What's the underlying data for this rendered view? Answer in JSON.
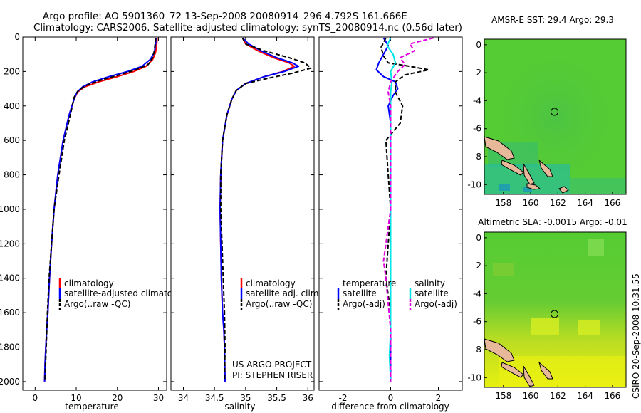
{
  "figure": {
    "title_line1": "Argo profile: AO 5901360_72 13-Sep-2008 20080914_296 4.792S 161.666E",
    "title_line2": "Climatology: CARS2006. Satellite-adjusted climatology: synTS_20080914.nc (0.56d later)",
    "side_text": "CSIRO 20-Sep-2008 10:31:55",
    "project_line1": "US ARGO PROJECT",
    "project_line2": "PI: STEPHEN RISER"
  },
  "colors": {
    "climatology": "#ff0000",
    "satellite": "#0000ff",
    "argo": "#000000",
    "sal_satellite": "#00e5e5",
    "sal_argo": "#e000e0",
    "land": "#e8b89a"
  },
  "chart_data": [
    {
      "type": "line",
      "id": "temperature",
      "xlabel": "temperature",
      "ylabel": "",
      "xlim": [
        -3,
        32
      ],
      "ylim": [
        2050,
        0
      ],
      "xticks": [
        0,
        10,
        20,
        30
      ],
      "yticks": [
        0,
        200,
        400,
        600,
        800,
        1000,
        1200,
        1400,
        1600,
        1800,
        2000
      ],
      "legend": [
        "climatology",
        "satellite-adjusted climatology",
        "Argo(..raw -QC)"
      ],
      "legend_placement": "lower-center",
      "series": [
        {
          "name": "climatology",
          "x": [
            29.7,
            29.6,
            29.3,
            28.6,
            27.0,
            24.0,
            20.0,
            15.5,
            12.0,
            10.3,
            9.5,
            8.3,
            6.8,
            5.5,
            4.6,
            4.0,
            3.5,
            3.1,
            2.8,
            2.6,
            2.4,
            2.3
          ],
          "y": [
            5,
            40,
            90,
            130,
            170,
            200,
            230,
            260,
            290,
            320,
            360,
            450,
            600,
            800,
            1000,
            1200,
            1400,
            1600,
            1700,
            1800,
            1900,
            2000
          ]
        },
        {
          "name": "satellite-adjusted climatology",
          "x": [
            29.4,
            29.3,
            29.0,
            28.0,
            26.0,
            22.5,
            18.0,
            14.0,
            11.5,
            10.2,
            9.5,
            8.3,
            6.8,
            5.5,
            4.6,
            4.0,
            3.5,
            3.1,
            2.8,
            2.6,
            2.4,
            2.3
          ],
          "y": [
            5,
            40,
            90,
            130,
            170,
            200,
            230,
            260,
            290,
            320,
            360,
            450,
            600,
            800,
            1000,
            1200,
            1400,
            1600,
            1700,
            1800,
            1900,
            2000
          ]
        },
        {
          "name": "Argo(..raw -QC)",
          "x": [
            29.3,
            29.2,
            29.0,
            28.6,
            27.5,
            24.5,
            20.5,
            16.0,
            12.5,
            10.5,
            9.5,
            8.6,
            7.1,
            5.8,
            4.6,
            4.0,
            3.4,
            3.0,
            2.7,
            2.4
          ],
          "y": [
            5,
            40,
            80,
            120,
            160,
            190,
            220,
            250,
            280,
            310,
            350,
            450,
            600,
            800,
            1000,
            1200,
            1400,
            1600,
            1800,
            1990
          ]
        }
      ]
    },
    {
      "type": "line",
      "id": "salinity",
      "xlabel": "salinity",
      "ylabel": "",
      "xlim": [
        33.8,
        36.1
      ],
      "ylim": [
        2050,
        0
      ],
      "xticks": [
        34,
        34.5,
        35,
        35.5,
        36
      ],
      "xtick_labels": [
        "34",
        "34.5",
        "35",
        "35.5",
        "36"
      ],
      "yticks": [
        0,
        200,
        400,
        600,
        800,
        1000,
        1200,
        1400,
        1600,
        1800,
        2000
      ],
      "legend": [
        "climatology",
        "satellite adj. clim.",
        "Argo(..raw -QC)"
      ],
      "legend_placement": "lower-center",
      "series": [
        {
          "name": "climatology",
          "x": [
            34.95,
            35.0,
            35.2,
            35.45,
            35.7,
            35.78,
            35.6,
            35.3,
            35.0,
            34.85,
            34.78,
            34.7,
            34.63,
            34.6,
            34.59,
            34.6,
            34.61,
            34.63,
            34.65,
            34.66,
            34.67
          ],
          "y": [
            5,
            40,
            80,
            120,
            150,
            170,
            200,
            230,
            270,
            310,
            360,
            450,
            600,
            800,
            1000,
            1200,
            1400,
            1600,
            1700,
            1800,
            2000
          ]
        },
        {
          "name": "satellite adj. clim.",
          "x": [
            34.95,
            35.05,
            35.25,
            35.5,
            35.75,
            35.85,
            35.62,
            35.3,
            35.0,
            34.85,
            34.78,
            34.7,
            34.63,
            34.6,
            34.59,
            34.6,
            34.61,
            34.63,
            34.65,
            34.66,
            34.67
          ],
          "y": [
            5,
            40,
            80,
            120,
            150,
            170,
            200,
            230,
            270,
            310,
            360,
            450,
            600,
            800,
            1000,
            1200,
            1400,
            1600,
            1700,
            1800,
            2000
          ]
        },
        {
          "name": "Argo(..raw -QC)",
          "x": [
            34.95,
            35.0,
            35.3,
            35.7,
            35.95,
            36.05,
            35.75,
            35.35,
            35.0,
            34.85,
            34.78,
            34.7,
            34.63,
            34.6,
            34.6,
            34.62,
            34.64,
            34.66,
            34.67,
            34.66
          ],
          "y": [
            5,
            40,
            80,
            120,
            150,
            180,
            210,
            240,
            270,
            310,
            360,
            450,
            600,
            800,
            1000,
            1200,
            1400,
            1600,
            1800,
            1990
          ]
        }
      ]
    },
    {
      "type": "line",
      "id": "difference",
      "xlabel": "difference from climatology",
      "ylabel": "",
      "xlim": [
        -3,
        3
      ],
      "ylim": [
        2050,
        0
      ],
      "xticks": [
        -2,
        0,
        2
      ],
      "yticks": [
        0,
        200,
        400,
        600,
        800,
        1000,
        1200,
        1400,
        1600,
        1800,
        2000
      ],
      "legend_temperature_header": "temperature",
      "legend_salinity_header": "salinity",
      "legend": [
        "satellite",
        "Argo(-adj)",
        "satellite",
        "Argo(-adj)"
      ],
      "legend_placement": "lower-center",
      "series": [
        {
          "name": "temperature satellite",
          "x": [
            -0.3,
            -0.1,
            -0.3,
            -0.5,
            -0.6,
            -0.3,
            0.2,
            0.3,
            0.1,
            -0.1,
            0.0,
            0.0,
            0.0,
            0.0,
            0.0,
            0.0,
            0.0
          ],
          "y": [
            5,
            50,
            100,
            150,
            190,
            230,
            260,
            300,
            340,
            400,
            500,
            700,
            1000,
            1300,
            1600,
            1800,
            2000
          ]
        },
        {
          "name": "temperature Argo(-adj)",
          "x": [
            -0.2,
            -0.4,
            -0.3,
            -0.1,
            0.8,
            1.6,
            0.6,
            0.2,
            0.2,
            0.5,
            0.4,
            -0.2,
            -0.1,
            0.0,
            -0.1,
            -0.2,
            0.0,
            0.0
          ],
          "y": [
            5,
            60,
            110,
            150,
            170,
            190,
            220,
            260,
            320,
            400,
            500,
            600,
            800,
            1000,
            1200,
            1400,
            1600,
            2000
          ]
        },
        {
          "name": "salinity satellite",
          "x": [
            0.0,
            -0.15,
            0.1,
            0.2,
            0.0,
            0.05,
            0.0,
            0.0,
            0.0,
            0.0,
            0.0,
            0.0,
            0.0,
            -0.05,
            0.0
          ],
          "y": [
            5,
            50,
            100,
            150,
            200,
            260,
            320,
            400,
            600,
            900,
            1200,
            1500,
            1700,
            1850,
            2000
          ]
        },
        {
          "name": "salinity Argo(-adj)",
          "x": [
            1.8,
            0.8,
            1.0,
            0.4,
            0.6,
            0.3,
            0.0,
            -0.1,
            0.0,
            0.0,
            0.0,
            -0.3,
            -0.2,
            0.0,
            0.0
          ],
          "y": [
            5,
            40,
            80,
            120,
            160,
            200,
            260,
            320,
            400,
            700,
            1000,
            1300,
            1400,
            1700,
            2000
          ]
        }
      ]
    },
    {
      "type": "heatmap",
      "id": "sst_map",
      "title": "AMSR-E SST: 29.4 Argo: 29.3",
      "xlim": [
        156.6,
        167.0
      ],
      "ylim": [
        -10.7,
        0.4
      ],
      "xticks": [
        158,
        160,
        162,
        164,
        166
      ],
      "yticks": [
        0,
        -2,
        -4,
        -6,
        -8,
        -10
      ],
      "marker": {
        "lon": 161.666,
        "lat": -4.792
      }
    },
    {
      "type": "heatmap",
      "id": "sla_map",
      "title": "Altimetric SLA: -0.0015 Argo: -0.01",
      "xlim": [
        156.6,
        167.0
      ],
      "ylim": [
        -10.7,
        0.4
      ],
      "xticks": [
        158,
        160,
        162,
        164,
        166
      ],
      "yticks": [
        0,
        -2,
        -4,
        -6,
        -8,
        -10
      ],
      "marker": {
        "lon": 161.666,
        "lat": -4.792
      }
    }
  ]
}
